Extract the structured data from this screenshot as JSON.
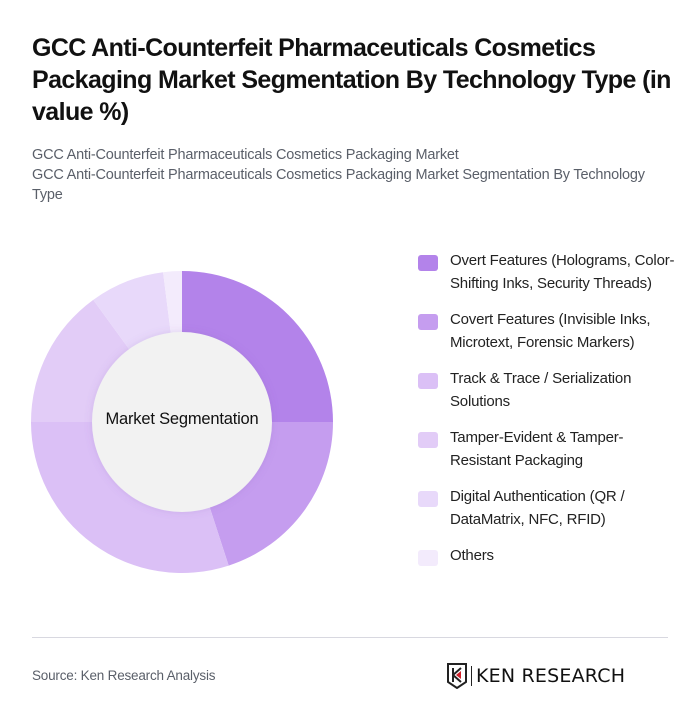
{
  "header": {
    "title": "GCC Anti-Counterfeit Pharmaceuticals Cosmetics Packaging Market Segmentation By Technology Type (in value %)",
    "subtitle_line1": "GCC Anti-Counterfeit Pharmaceuticals Cosmetics Packaging Market",
    "subtitle_line2": "GCC Anti-Counterfeit Pharmaceuticals Cosmetics Packaging Market Segmentation By Technology Type"
  },
  "chart_data": {
    "type": "pie",
    "variant": "donut",
    "title": "GCC Anti-Counterfeit Pharmaceuticals Cosmetics Packaging Market Segmentation By Technology Type (in value %)",
    "center_label": "Market Segmentation",
    "categories": [
      "Overt Features (Holograms, Color-Shifting Inks, Security Threads)",
      "Covert Features (Invisible Inks, Microtext, Forensic Markers)",
      "Track & Trace / Serialization Solutions",
      "Tamper-Evident & Tamper-Resistant Packaging",
      "Digital Authentication (QR / DataMatrix, NFC, RFID)",
      "Others"
    ],
    "values": [
      25,
      20,
      30,
      15,
      8,
      2
    ],
    "colors": [
      "#b383ea",
      "#c59def",
      "#dbc0f6",
      "#e2ccf7",
      "#e8d9fa",
      "#f3ebfc"
    ],
    "legend_position": "right",
    "unit": "%"
  },
  "legend": {
    "items": [
      {
        "label": "Overt Features (Holograms, Color-Shifting Inks, Security Threads)",
        "color": "#b383ea"
      },
      {
        "label": "Covert Features (Invisible Inks, Microtext, Forensic Markers)",
        "color": "#c59def"
      },
      {
        "label": "Track & Trace / Serialization Solutions",
        "color": "#dbc0f6"
      },
      {
        "label": "Tamper-Evident & Tamper-Resistant Packaging",
        "color": "#e2ccf7"
      },
      {
        "label": "Digital Authentication (QR / DataMatrix, NFC, RFID)",
        "color": "#e8d9fa"
      },
      {
        "label": "Others",
        "color": "#f3ebfc"
      }
    ]
  },
  "footer": {
    "source": "Source: Ken Research Analysis",
    "logo_text": "KEN RESEARCH"
  }
}
